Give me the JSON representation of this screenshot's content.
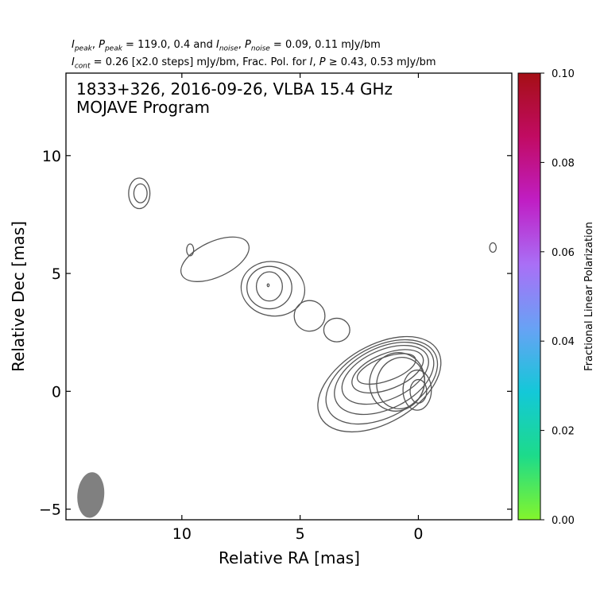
{
  "header": {
    "line1": {
      "sym_I": "I",
      "sub_peak_a": "peak",
      "sep1": ", ",
      "sym_P": "P",
      "sub_peak_b": "peak",
      "mid": " = 119.0, 0.4 and ",
      "sym_I2": "I",
      "sub_noise_a": "noise",
      "sep2": ", ",
      "sym_P2": "P",
      "sub_noise_b": "noise",
      "tail": " = 0.09, 0.11 mJy/bm"
    },
    "line2": {
      "sym_I": "I",
      "sub_cont": "cont",
      "text_a": " = 0.26 [x2.0 steps] mJy/bm, Frac. Pol. for ",
      "sym_I2": "I",
      "sep": ", ",
      "sym_P": "P",
      "text_b": " ≥ 0.43, 0.53 mJy/bm"
    }
  },
  "chart_data": {
    "type": "contour",
    "title": "1833+326, 2016-09-26, VLBA 15.4 GHz",
    "subtitle": "MOJAVE Program",
    "xlabel": "Relative RA [mas]",
    "ylabel": "Relative Dec [mas]",
    "xlim": [
      14.9,
      -3.95
    ],
    "ylim": [
      -5.45,
      13.5
    ],
    "x_ticks": [
      10,
      5,
      0
    ],
    "x_tick_labels": [
      "10",
      "5",
      "0"
    ],
    "y_ticks": [
      10,
      5,
      0,
      -5
    ],
    "y_tick_labels": [
      "10",
      "5",
      "0",
      "−5"
    ],
    "contour_color": "#555555",
    "contours": [
      {
        "region": "core",
        "rings": [
          {
            "x": 0.0,
            "y": 0.0,
            "rx": 0.35,
            "ry": 0.5
          },
          {
            "x": 0.05,
            "y": 0.05,
            "rx": 0.6,
            "ry": 0.85
          }
        ]
      },
      {
        "region": "core-inner-jet",
        "rings": [
          {
            "x": 0.75,
            "y": 0.35,
            "rx": 1.0,
            "ry": 1.1,
            "pa": 20
          },
          {
            "x": 0.9,
            "y": 0.4,
            "rx": 1.15,
            "ry": 1.25,
            "pa": 22
          }
        ]
      },
      {
        "region": "inner-jet",
        "rings": [
          {
            "x": 1.35,
            "y": 0.95,
            "rx": 1.3,
            "ry": 0.5,
            "pa": -20
          },
          {
            "x": 1.3,
            "y": 0.85,
            "rx": 1.6,
            "ry": 0.75,
            "pa": -22
          },
          {
            "x": 1.4,
            "y": 0.7,
            "rx": 1.95,
            "ry": 1.05,
            "pa": -24
          },
          {
            "x": 1.45,
            "y": 0.55,
            "rx": 2.25,
            "ry": 1.3,
            "pa": -26
          },
          {
            "x": 1.55,
            "y": 0.4,
            "rx": 2.55,
            "ry": 1.5,
            "pa": -28
          },
          {
            "x": 1.65,
            "y": 0.3,
            "rx": 2.85,
            "ry": 1.65,
            "pa": -30
          }
        ]
      },
      {
        "region": "knot-4.5",
        "rings": [
          {
            "x": 6.35,
            "y": 4.5,
            "rx": 0.04,
            "ry": 0.06
          },
          {
            "x": 6.3,
            "y": 4.45,
            "rx": 0.55,
            "ry": 0.62
          },
          {
            "x": 6.3,
            "y": 4.4,
            "rx": 0.95,
            "ry": 0.9
          },
          {
            "x": 6.15,
            "y": 4.35,
            "rx": 1.35,
            "ry": 1.15,
            "pa": 10
          }
        ]
      },
      {
        "region": "knot-3.2",
        "rings": [
          {
            "x": 4.6,
            "y": 3.2,
            "rx": 0.65,
            "ry": 0.65
          }
        ]
      },
      {
        "region": "knot-2.5",
        "rings": [
          {
            "x": 3.45,
            "y": 2.6,
            "rx": 0.55,
            "ry": 0.5
          }
        ]
      },
      {
        "region": "knot-5.8",
        "rings": [
          {
            "x": 9.65,
            "y": 6.0,
            "rx": 0.15,
            "ry": 0.25
          },
          {
            "x": 8.6,
            "y": 5.6,
            "rx": 1.55,
            "ry": 0.75,
            "pa": -25
          }
        ]
      },
      {
        "region": "isolated-8.3",
        "rings": [
          {
            "x": 11.75,
            "y": 8.4,
            "rx": 0.28,
            "ry": 0.4
          },
          {
            "x": 11.8,
            "y": 8.4,
            "rx": 0.45,
            "ry": 0.65
          }
        ]
      },
      {
        "region": "isolated-west",
        "rings": [
          {
            "x": -3.15,
            "y": 6.1,
            "rx": 0.14,
            "ry": 0.2
          }
        ]
      }
    ],
    "beam": {
      "x": 13.85,
      "y": -4.4,
      "major": 0.95,
      "minor": 0.55,
      "pa": 5,
      "color": "#808080"
    },
    "colorbar": {
      "label": "Fractional Linear Polarization",
      "range": [
        0.0,
        0.1
      ],
      "ticks": [
        0.0,
        0.02,
        0.04,
        0.06,
        0.08,
        0.1
      ],
      "tick_labels": [
        "0.00",
        "0.02",
        "0.04",
        "0.06",
        "0.08",
        "0.10"
      ],
      "stops": [
        "#83f52c",
        "#1ddb8a",
        "#13c8d8",
        "#68a2f5",
        "#a96ff6",
        "#c01ec4",
        "#c10b63",
        "#a50f15"
      ]
    }
  }
}
